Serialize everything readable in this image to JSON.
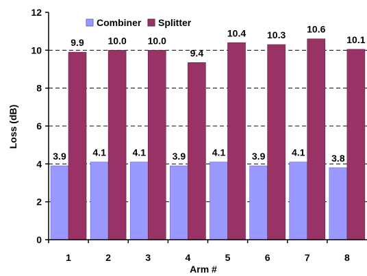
{
  "chart_data": {
    "type": "bar",
    "categories": [
      "1",
      "2",
      "3",
      "4",
      "5",
      "6",
      "7",
      "8"
    ],
    "series": [
      {
        "name": "Combiner",
        "values": [
          3.9,
          4.1,
          4.1,
          3.9,
          4.1,
          3.9,
          4.1,
          3.8
        ],
        "labels": [
          "3.9",
          "4.1",
          "4.1",
          "3.9",
          "4.1",
          "3.9",
          "4.1",
          "3.8"
        ],
        "color": "#9999ff",
        "stroke": "#6666cc"
      },
      {
        "name": "Splitter",
        "values": [
          9.9,
          10.0,
          10.0,
          9.35,
          10.4,
          10.3,
          10.6,
          10.05
        ],
        "labels": [
          "9.9",
          "10.0",
          "10.0",
          "9.4",
          "10.4",
          "10.3",
          "10.6",
          "10.1"
        ],
        "color": "#993366",
        "stroke": "#662244"
      }
    ],
    "xlabel": "Arm #",
    "ylabel": "Loss (dB)",
    "ylim": [
      0,
      12
    ],
    "yticks": [
      "0",
      "2",
      "4",
      "6",
      "8",
      "10",
      "12"
    ],
    "grid": true,
    "legend_position": "top-left"
  }
}
